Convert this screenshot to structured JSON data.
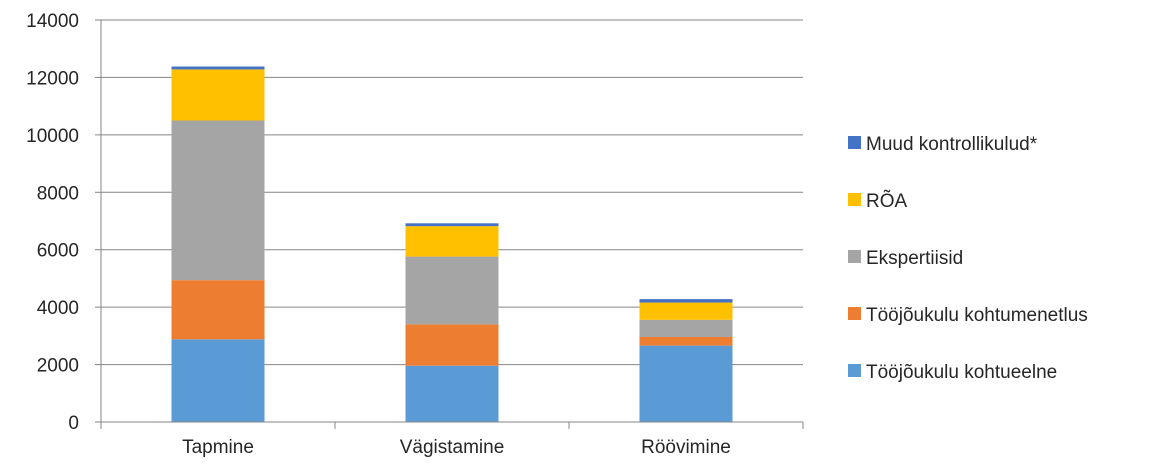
{
  "chart_data": {
    "type": "bar",
    "stacked": true,
    "categories": [
      "Tapmine",
      "Vägistamine",
      "Röövimine"
    ],
    "series": [
      {
        "name": "Tööjõukulu kohtueelne",
        "color": "#5B9BD5",
        "values": [
          2880,
          1960,
          2660
        ]
      },
      {
        "name": "Tööjõukulu kohtumenetlus",
        "color": "#ED7D31",
        "values": [
          2060,
          1440,
          300
        ]
      },
      {
        "name": "Ekspertiisid",
        "color": "#A5A5A5",
        "values": [
          5560,
          2360,
          600
        ]
      },
      {
        "name": "RÕA",
        "color": "#FFC000",
        "values": [
          1780,
          1060,
          600
        ]
      },
      {
        "name": "Muud kontrollikulud*",
        "color": "#4472C4",
        "values": [
          100,
          100,
          120
        ]
      }
    ],
    "ylim": [
      0,
      14000
    ],
    "yticks": [
      0,
      2000,
      4000,
      6000,
      8000,
      10000,
      12000,
      14000
    ],
    "grid": true,
    "legend_position": "right",
    "legend_order": [
      "Muud kontrollikulud*",
      "RÕA",
      "Ekspertiisid",
      "Tööjõukulu kohtumenetlus",
      "Tööjõukulu kohtueelne"
    ]
  }
}
